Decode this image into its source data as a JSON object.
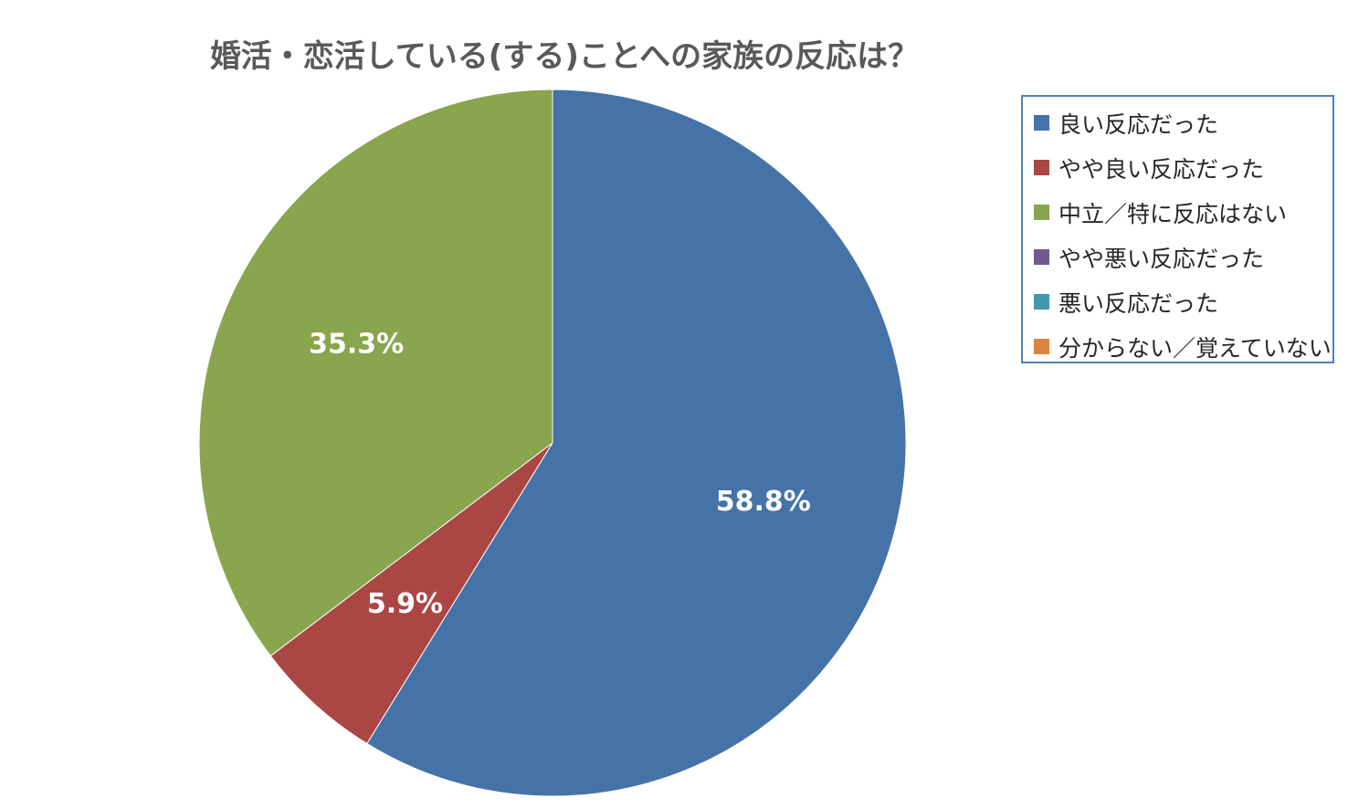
{
  "chart_data": {
    "type": "pie",
    "title": "婚活・恋活している(する)ことへの家族の反応は？",
    "categories": [
      "良い反応だった",
      "やや良い反応だった",
      "中立／特に反応はない",
      "やや悪い反応だった",
      "悪い反応だった",
      "分からない／覚えていない"
    ],
    "values": [
      58.8,
      5.9,
      35.3,
      0,
      0,
      0
    ],
    "value_labels": [
      "58.8%",
      "5.9%",
      "35.3%",
      "",
      "",
      ""
    ],
    "colors": [
      "#4572a7",
      "#aa4643",
      "#89a54e",
      "#71588f",
      "#4198af",
      "#db843d"
    ],
    "legend_position": "right"
  }
}
